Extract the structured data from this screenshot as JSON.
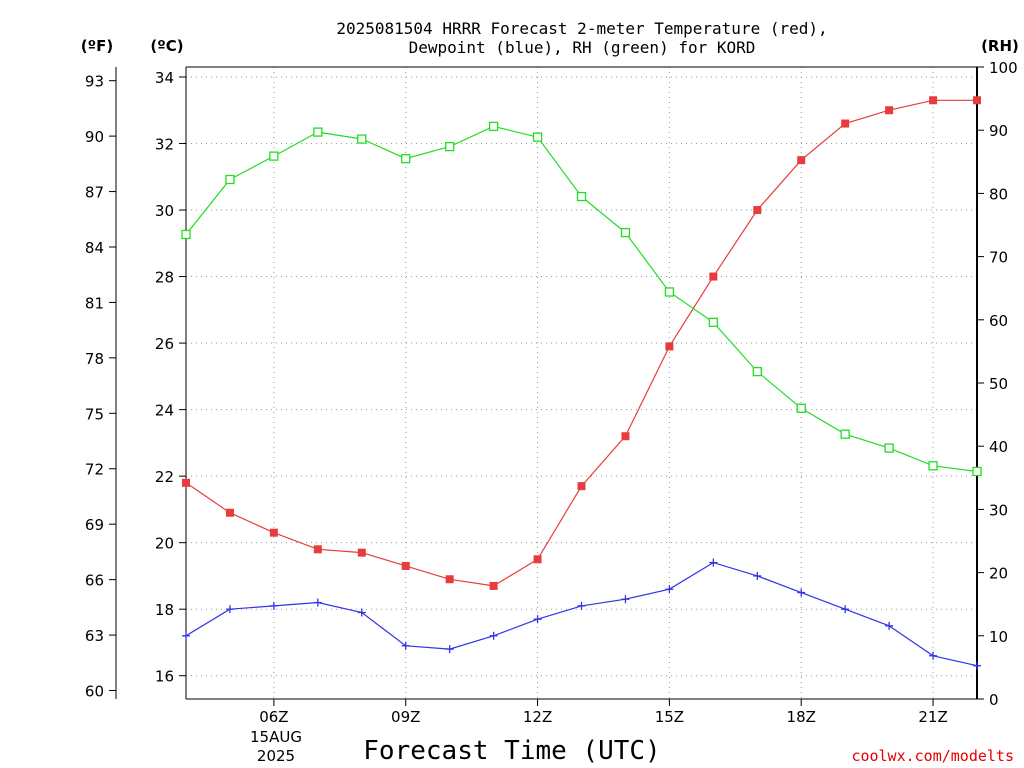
{
  "chart_data": {
    "type": "line",
    "title_lines": [
      "2025081504 HRRR Forecast 2-meter Temperature (red),",
      "Dewpoint (blue), RH (green) for KORD"
    ],
    "left_unit_f": "(ºF)",
    "left_unit_c": "(ºC)",
    "right_unit": "(RH)",
    "xlabel": "Forecast Time (UTC)",
    "credit": "coolwx.com/modelts",
    "date_label": [
      "15AUG",
      "2025"
    ],
    "x_range": [
      4,
      22
    ],
    "x_ticks": [
      6,
      9,
      12,
      15,
      18,
      21
    ],
    "x_tick_labels": [
      "06Z",
      "09Z",
      "12Z",
      "15Z",
      "18Z",
      "21Z"
    ],
    "y_celsius_range": [
      15.3,
      34.3
    ],
    "y_celsius_ticks": [
      16,
      18,
      20,
      22,
      24,
      26,
      28,
      30,
      32,
      34
    ],
    "y_fahrenheit_ticks": [
      60,
      63,
      66,
      69,
      72,
      75,
      78,
      81,
      84,
      87,
      90,
      93
    ],
    "y_rh_range": [
      0,
      100
    ],
    "y_rh_ticks": [
      0,
      10,
      20,
      30,
      40,
      50,
      60,
      70,
      80,
      90,
      100
    ],
    "grid": true,
    "x": [
      4,
      5,
      6,
      7,
      8,
      9,
      10,
      11,
      12,
      13,
      14,
      15,
      16,
      17,
      18,
      19,
      20,
      21,
      22
    ],
    "series": [
      {
        "name": "Temperature",
        "color": "#e83c3c",
        "marker": "filled-square",
        "axis": "celsius",
        "values": [
          21.8,
          20.9,
          20.3,
          19.8,
          19.7,
          19.3,
          18.9,
          18.7,
          19.5,
          21.7,
          23.2,
          25.9,
          28.0,
          30.0,
          31.5,
          32.6,
          33.0,
          33.3,
          33.3
        ]
      },
      {
        "name": "Dewpoint",
        "color": "#3232e6",
        "marker": "plus",
        "axis": "celsius",
        "values": [
          17.2,
          18.0,
          18.1,
          18.2,
          17.9,
          16.9,
          16.8,
          17.2,
          17.7,
          18.1,
          18.3,
          18.6,
          19.4,
          19.0,
          18.5,
          18.0,
          17.5,
          16.6,
          16.3
        ]
      },
      {
        "name": "RH",
        "color": "#22dd22",
        "marker": "open-square",
        "axis": "rh",
        "values": [
          73.5,
          82.2,
          85.9,
          89.7,
          88.6,
          85.5,
          87.4,
          90.6,
          88.9,
          79.5,
          73.8,
          64.4,
          59.6,
          51.8,
          46.0,
          41.9,
          39.7,
          36.9,
          36.0
        ]
      }
    ]
  }
}
